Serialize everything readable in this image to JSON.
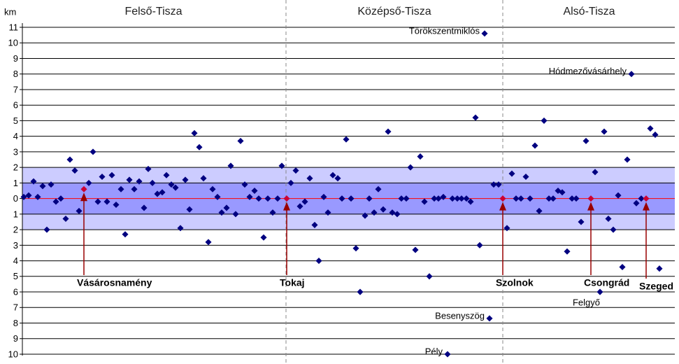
{
  "chart_data": {
    "type": "scatter",
    "y_label": "km",
    "sections": [
      "Felső-Tisza",
      "Középső-Tisza",
      "Alsó-Tisza"
    ],
    "dividers": [
      409,
      719
    ],
    "xlim": [
      30,
      966
    ],
    "ylim": [
      -10,
      11
    ],
    "yticks": [
      11,
      10,
      9,
      8,
      7,
      6,
      5,
      4,
      3,
      2,
      1,
      0,
      {
        "value": -1,
        "label": "1"
      },
      {
        "value": -2,
        "label": "2"
      },
      {
        "value": -3,
        "label": "3"
      },
      {
        "value": -4,
        "label": "4"
      },
      {
        "value": -5,
        "label": "5"
      },
      {
        "value": -6,
        "label": "6"
      },
      {
        "value": -7,
        "label": "7"
      },
      {
        "value": -8,
        "label": "8"
      },
      {
        "value": -9,
        "label": "9"
      },
      {
        "value": -10,
        "label": "10"
      }
    ],
    "grid": true,
    "bands": [
      {
        "limit": 2,
        "color": "#ccccff"
      },
      {
        "limit": 1,
        "color": "#9999ff"
      }
    ],
    "zero_line_color": "#ff0000",
    "point_color": "#000080",
    "x": [
      34,
      41,
      48,
      54,
      61,
      67,
      73,
      80,
      87,
      94,
      100,
      107,
      113,
      127,
      133,
      140,
      146,
      153,
      160,
      166,
      173,
      179,
      185,
      192,
      199,
      206,
      212,
      218,
      225,
      232,
      238,
      245,
      251,
      258,
      265,
      271,
      278,
      285,
      291,
      298,
      304,
      311,
      317,
      324,
      330,
      337,
      344,
      350,
      357,
      364,
      370,
      377,
      383,
      390,
      397,
      403,
      416,
      423,
      429,
      436,
      443,
      450,
      456,
      463,
      469,
      476,
      483,
      489,
      495,
      502,
      509,
      515,
      522,
      528,
      535,
      541,
      548,
      555,
      561,
      568,
      574,
      581,
      587,
      594,
      601,
      607,
      614,
      621,
      627,
      634,
      640,
      647,
      654,
      660,
      667,
      673,
      680,
      686,
      693,
      700,
      706,
      713,
      725,
      732,
      738,
      745,
      752,
      758,
      765,
      771,
      778,
      785,
      791,
      798,
      804,
      811,
      818,
      824,
      831,
      838,
      851,
      858,
      864,
      870,
      877,
      884,
      890,
      897,
      903,
      910,
      917,
      930,
      937,
      943
    ],
    "y": [
      0.1,
      0.2,
      1.1,
      0.1,
      0.8,
      -2,
      0.9,
      -0.2,
      0,
      -1.3,
      2.5,
      1.8,
      -0.8,
      1,
      3,
      -0.2,
      1.4,
      -0.2,
      1.5,
      -0.4,
      0.6,
      -2.3,
      1.2,
      0.6,
      1.1,
      -0.6,
      1.9,
      1,
      0.3,
      0.4,
      1.5,
      0.9,
      0.7,
      -1.9,
      1.2,
      -0.7,
      4.2,
      3.3,
      1.3,
      -2.8,
      0.6,
      0.1,
      -0.9,
      -0.6,
      2.1,
      -1,
      3.7,
      0.9,
      0.1,
      0.5,
      0,
      -2.5,
      0,
      -0.9,
      0,
      2.1,
      1,
      1.8,
      -0.5,
      -0.2,
      1.3,
      -1.7,
      -4,
      0.1,
      -0.9,
      1.5,
      1.3,
      0,
      3.8,
      0,
      -3.2,
      -6,
      -1.1,
      0,
      -0.9,
      0.6,
      -0.7,
      4.3,
      -0.9,
      -1,
      0,
      0,
      2,
      -3.3,
      2.7,
      -0.2,
      -5,
      0,
      0,
      0.1,
      -10,
      0,
      0,
      0,
      0,
      -0.2,
      5.2,
      -3,
      10.6,
      -7.7,
      0.9,
      0.9,
      -1.9,
      1.6,
      0,
      0,
      1.4,
      0,
      3.4,
      -0.8,
      5,
      0,
      0,
      0.5,
      0.4,
      -3.4,
      0,
      0,
      -1.5,
      3.7,
      1.7,
      -6,
      4.3,
      -1.3,
      -2,
      0.2,
      -4.4,
      2.5,
      8,
      -0.3,
      0,
      4.5,
      4.1,
      -4.5
    ],
    "towns": [
      {
        "label": "Vásárosnamény",
        "x": 120,
        "y": 0.6
      },
      {
        "label": "Tokaj",
        "x": 410,
        "y": 0
      },
      {
        "label": "Szolnok",
        "x": 719,
        "y": 0
      },
      {
        "label": "Csongrád",
        "x": 845,
        "y": 0
      },
      {
        "label": "Szeged",
        "x": 924,
        "y": 0
      }
    ],
    "town_color": "#cc0033",
    "arrow_color": "#990000",
    "annotations": [
      {
        "text": "Törökszentmiklós",
        "x": 693,
        "y": 10.6
      },
      {
        "text": "Hódmezővásárhely",
        "x": 903,
        "y": 8
      },
      {
        "text": "Besenyszög",
        "x": 700,
        "y": -7.7
      },
      {
        "text": "Pély",
        "x": 640,
        "y": -10
      },
      {
        "text": "Felgyő",
        "x": 858,
        "y": -6
      }
    ]
  }
}
